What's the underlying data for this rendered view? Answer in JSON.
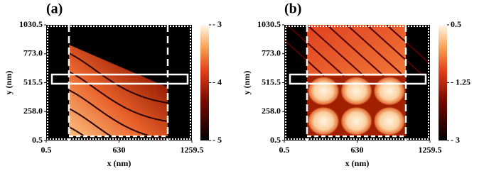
{
  "chart_data": [
    {
      "type": "heatmap",
      "title": "(a)",
      "xlabel": "x (nm)",
      "ylabel": "y (nm)",
      "xlim": [
        0.5,
        1259.5
      ],
      "xticks": [
        0.5,
        630,
        1259.5
      ],
      "ylim": [
        0.5,
        1030.5
      ],
      "yticks": [
        0.5,
        {
          "value": 258.0,
          "label": "258.0"
        },
        515.5,
        {
          "value": 773.0,
          "label": "773.0"
        },
        1030.5
      ],
      "clim": [
        -5,
        -3
      ],
      "cticks": [
        {
          "value": -3,
          "label": "- 3"
        },
        {
          "value": -4,
          "label": "- 4"
        },
        {
          "value": -5,
          "label": "- 5"
        }
      ]
    },
    {
      "type": "heatmap",
      "title": "(b)",
      "xlabel": "x (nm)",
      "ylabel": "y (nm)",
      "xlim": [
        0.5,
        1259.5
      ],
      "xticks": [
        0.5,
        630,
        1259.5
      ],
      "ylim": [
        0.5,
        1030.5
      ],
      "yticks": [
        0.5,
        {
          "value": 258.0,
          "label": "258.0"
        },
        515.5,
        {
          "value": 773.0,
          "label": "773.0"
        },
        1030.5
      ],
      "clim": [
        -3,
        0.5
      ],
      "cticks": [
        0.5,
        {
          "value": -1.25,
          "label": "- 1.25"
        },
        {
          "value": -3,
          "label": "- 3"
        }
      ]
    }
  ]
}
